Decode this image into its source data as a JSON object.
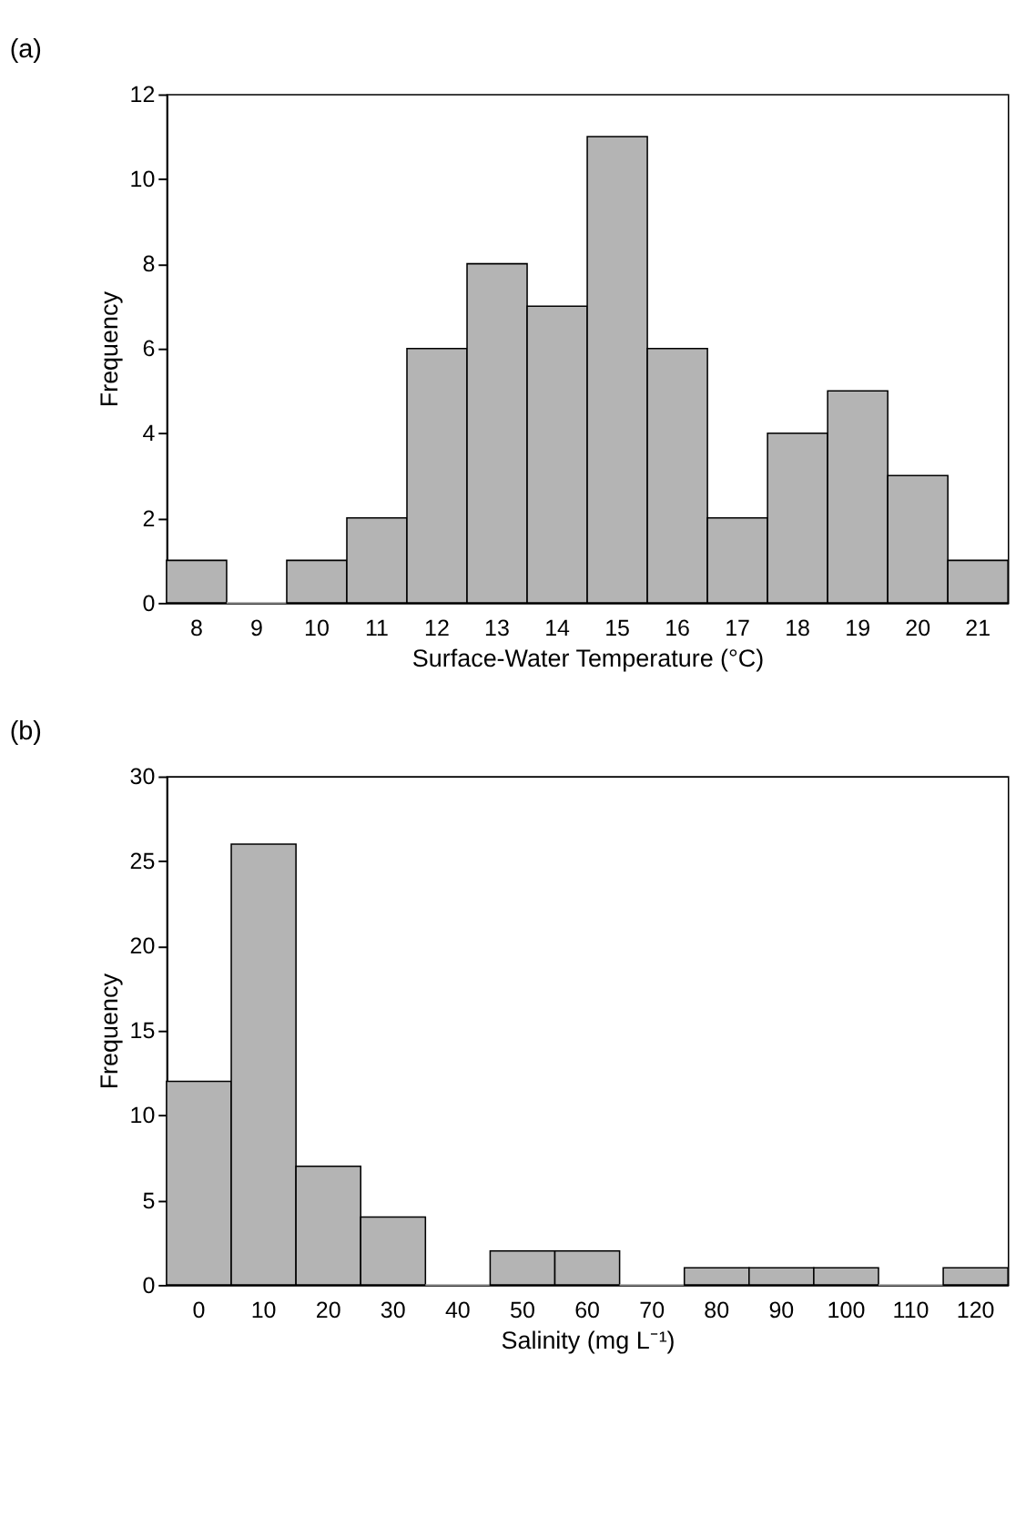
{
  "chart_data": [
    {
      "type": "bar",
      "title": "(a)",
      "xlabel": "Surface-Water Temperature (°C)",
      "ylabel": "Frequency",
      "categories": [
        "8",
        "9",
        "10",
        "11",
        "12",
        "13",
        "14",
        "15",
        "16",
        "17",
        "18",
        "19",
        "20",
        "21"
      ],
      "values": [
        1,
        0,
        1,
        2,
        6,
        8,
        7,
        11,
        6,
        2,
        4,
        5,
        3,
        1
      ],
      "color": "#b4b4b4",
      "ylim": [
        0,
        12
      ],
      "yticks": [
        0,
        2,
        4,
        6,
        8,
        10,
        12
      ],
      "grid": false
    },
    {
      "type": "bar",
      "title": "(b)",
      "xlabel": "Salinity (mg L⁻¹)",
      "ylabel": "Frequency",
      "categories": [
        "0",
        "10",
        "20",
        "30",
        "40",
        "50",
        "60",
        "70",
        "80",
        "90",
        "100",
        "110",
        "120"
      ],
      "values": [
        12,
        26,
        7,
        4,
        0,
        2,
        2,
        0,
        1,
        1,
        1,
        0,
        1
      ],
      "color": "#b4b4b4",
      "ylim": [
        0,
        30
      ],
      "yticks": [
        0,
        5,
        10,
        15,
        20,
        25,
        30
      ],
      "grid": false
    }
  ]
}
